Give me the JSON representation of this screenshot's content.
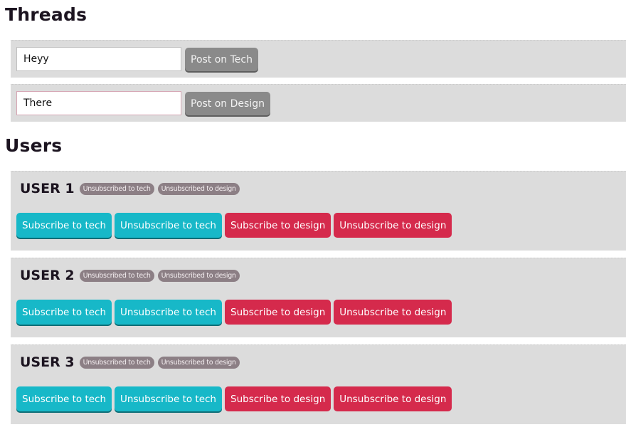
{
  "threads": {
    "title": "Threads",
    "rows": [
      {
        "input_value": "Heyy",
        "button_label": "Post on Tech"
      },
      {
        "input_value": "There",
        "button_label": "Post on Design"
      }
    ]
  },
  "users": {
    "title": "Users",
    "list": [
      {
        "name": "USER 1",
        "badges": [
          "Unsubscribed to tech",
          "Unsubscribed to design"
        ],
        "buttons": [
          "Subscribe to tech",
          "Unsubscribe to tech",
          "Subscribe to design",
          "Unsubscribe to design"
        ]
      },
      {
        "name": "USER 2",
        "badges": [
          "Unsubscribed to tech",
          "Unsubscribed to design"
        ],
        "buttons": [
          "Subscribe to tech",
          "Unsubscribe to tech",
          "Subscribe to design",
          "Unsubscribe to design"
        ]
      },
      {
        "name": "USER 3",
        "badges": [
          "Unsubscribed to tech",
          "Unsubscribed to design"
        ],
        "buttons": [
          "Subscribe to tech",
          "Unsubscribe to tech",
          "Subscribe to design",
          "Unsubscribe to design"
        ]
      }
    ]
  },
  "colors": {
    "panel_bg": "#dcdcdc",
    "tech_button": "#17b8c8",
    "design_button": "#d52a4c",
    "post_button": "#8a8a8a",
    "badge": "#8c7f85"
  }
}
